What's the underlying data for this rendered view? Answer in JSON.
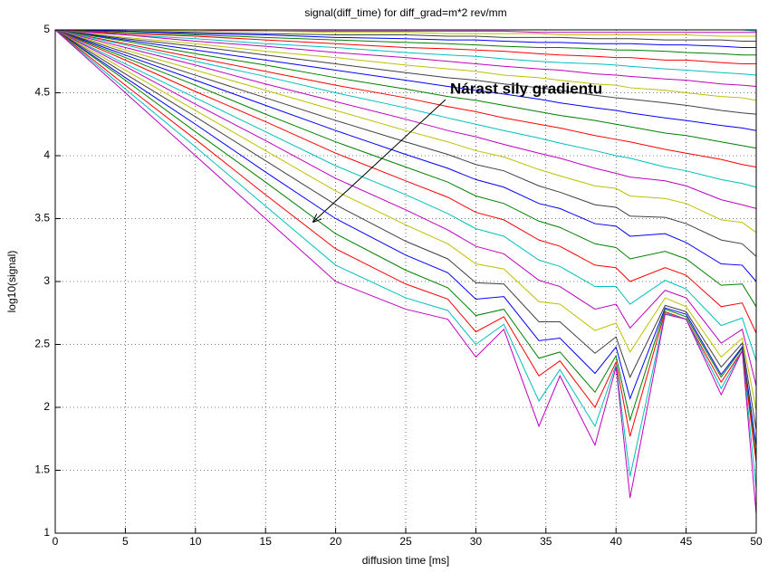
{
  "chart_data": {
    "type": "line",
    "title": "signal(diff_time) for diff_grad=m*2 rev/mm",
    "x_label": "diffusion time [ms]",
    "y_label": "log10(signal)",
    "annotation": "Nárast sily gradientu",
    "xlim": [
      0,
      50
    ],
    "xticks": [
      0,
      5,
      10,
      15,
      20,
      25,
      30,
      35,
      40,
      45,
      50
    ],
    "ylim": [
      1,
      5
    ],
    "yticks": [
      1,
      1.5,
      2,
      2.5,
      3,
      3.5,
      4,
      4.5,
      5
    ],
    "grid": true,
    "x": [
      0,
      5,
      10,
      15,
      20,
      25,
      28,
      30,
      32,
      34.5,
      36,
      38.5,
      40,
      41,
      43.5,
      45,
      47.5,
      49,
      50
    ],
    "series": [
      {
        "color": "#00bfbf",
        "values": [
          5,
          5,
          5,
          5,
          5,
          5,
          5,
          5,
          5,
          5,
          5,
          5,
          5,
          5,
          5,
          5,
          5,
          5,
          4.99
        ]
      },
      {
        "color": "#bf00bf",
        "values": [
          5,
          5,
          5,
          4.99,
          4.99,
          4.99,
          4.99,
          4.99,
          4.99,
          4.98,
          4.98,
          4.98,
          4.98,
          4.98,
          4.98,
          4.98,
          4.98,
          4.98,
          4.98
        ]
      },
      {
        "color": "#bfbf00",
        "values": [
          5,
          5,
          4.99,
          4.99,
          4.98,
          4.98,
          4.97,
          4.97,
          4.97,
          4.97,
          4.96,
          4.96,
          4.96,
          4.96,
          4.96,
          4.96,
          4.95,
          4.95,
          4.95
        ]
      },
      {
        "color": "#404040",
        "values": [
          5,
          4.99,
          4.98,
          4.97,
          4.96,
          4.96,
          4.95,
          4.95,
          4.94,
          4.94,
          4.94,
          4.93,
          4.93,
          4.93,
          4.92,
          4.92,
          4.92,
          4.91,
          4.91
        ]
      },
      {
        "color": "#0000ff",
        "values": [
          5,
          4.99,
          4.97,
          4.96,
          4.94,
          4.93,
          4.92,
          4.92,
          4.91,
          4.9,
          4.9,
          4.89,
          4.89,
          4.89,
          4.88,
          4.88,
          4.87,
          4.86,
          4.86
        ]
      },
      {
        "color": "#008000",
        "values": [
          5,
          4.98,
          4.96,
          4.94,
          4.92,
          4.9,
          4.89,
          4.88,
          4.87,
          4.86,
          4.86,
          4.85,
          4.84,
          4.84,
          4.83,
          4.82,
          4.81,
          4.8,
          4.8
        ]
      },
      {
        "color": "#ff0000",
        "values": [
          5,
          4.97,
          4.95,
          4.92,
          4.89,
          4.86,
          4.85,
          4.84,
          4.83,
          4.81,
          4.8,
          4.79,
          4.78,
          4.78,
          4.76,
          4.76,
          4.74,
          4.73,
          4.73
        ]
      },
      {
        "color": "#00bfbf",
        "values": [
          5,
          4.96,
          4.93,
          4.89,
          4.86,
          4.82,
          4.8,
          4.79,
          4.77,
          4.75,
          4.74,
          4.73,
          4.72,
          4.71,
          4.69,
          4.68,
          4.66,
          4.65,
          4.64
        ]
      },
      {
        "color": "#bf00bf",
        "values": [
          5,
          4.96,
          4.91,
          4.87,
          4.82,
          4.78,
          4.75,
          4.73,
          4.71,
          4.69,
          4.68,
          4.65,
          4.64,
          4.63,
          4.61,
          4.6,
          4.57,
          4.56,
          4.55
        ]
      },
      {
        "color": "#bfbf00",
        "values": [
          5,
          4.94,
          4.89,
          4.83,
          4.78,
          4.72,
          4.69,
          4.67,
          4.64,
          4.62,
          4.6,
          4.57,
          4.56,
          4.54,
          4.52,
          4.5,
          4.47,
          4.46,
          4.44
        ]
      },
      {
        "color": "#404040",
        "values": [
          5,
          4.93,
          4.87,
          4.8,
          4.73,
          4.66,
          4.62,
          4.6,
          4.57,
          4.54,
          4.52,
          4.48,
          4.46,
          4.45,
          4.42,
          4.4,
          4.36,
          4.34,
          4.33
        ]
      },
      {
        "color": "#0000ff",
        "values": [
          5,
          4.92,
          4.84,
          4.76,
          4.68,
          4.6,
          4.55,
          4.52,
          4.49,
          4.45,
          4.42,
          4.38,
          4.36,
          4.34,
          4.3,
          4.28,
          4.24,
          4.22,
          4.2
        ]
      },
      {
        "color": "#008000",
        "values": [
          5,
          4.91,
          4.81,
          4.72,
          4.62,
          4.53,
          4.47,
          4.44,
          4.4,
          4.35,
          4.32,
          4.28,
          4.25,
          4.23,
          4.18,
          4.16,
          4.11,
          4.08,
          4.06
        ]
      },
      {
        "color": "#ff0000",
        "values": [
          5,
          4.89,
          4.78,
          4.67,
          4.56,
          4.46,
          4.39,
          4.35,
          4.3,
          4.25,
          4.22,
          4.16,
          4.13,
          4.11,
          4.05,
          4.02,
          3.97,
          3.93,
          3.91
        ]
      },
      {
        "color": "#00bfbf",
        "values": [
          5,
          4.88,
          4.75,
          4.63,
          4.5,
          4.38,
          4.3,
          4.25,
          4.2,
          4.14,
          4.1,
          4.04,
          4,
          3.98,
          3.91,
          3.88,
          3.81,
          3.78,
          3.75
        ]
      },
      {
        "color": "#bf00bf",
        "values": [
          5,
          4.86,
          4.72,
          4.57,
          4.43,
          4.29,
          4.2,
          4.15,
          4.09,
          4.02,
          3.98,
          3.9,
          3.86,
          3.83,
          3.8,
          3.76,
          3.65,
          3.61,
          3.58
        ]
      },
      {
        "color": "#bfbf00",
        "values": [
          5,
          4.84,
          4.68,
          4.52,
          4.36,
          4.2,
          4.11,
          4.04,
          3.99,
          3.89,
          3.84,
          3.76,
          3.74,
          3.68,
          3.66,
          3.62,
          3.49,
          3.47,
          3.39
        ]
      },
      {
        "color": "#404040",
        "values": [
          5,
          4.82,
          4.64,
          4.46,
          4.28,
          4.11,
          4.01,
          3.93,
          3.88,
          3.76,
          3.71,
          3.61,
          3.59,
          3.52,
          3.51,
          3.46,
          3.33,
          3.3,
          3.2
        ]
      },
      {
        "color": "#0000ff",
        "values": [
          5,
          4.8,
          4.6,
          4.4,
          4.2,
          4.01,
          3.9,
          3.81,
          3.75,
          3.62,
          3.58,
          3.46,
          3.44,
          3.36,
          3.38,
          3.31,
          3.14,
          3.13,
          3
        ]
      },
      {
        "color": "#008000",
        "values": [
          5,
          4.78,
          4.56,
          4.33,
          4.11,
          3.91,
          3.79,
          3.68,
          3.62,
          3.48,
          3.43,
          3.3,
          3.27,
          3.18,
          3.24,
          3.18,
          2.97,
          2.98,
          2.8
        ]
      },
      {
        "color": "#ff0000",
        "values": [
          5,
          4.76,
          4.51,
          4.27,
          4.02,
          3.8,
          3.67,
          3.55,
          3.49,
          3.33,
          3.28,
          3.13,
          3.11,
          3,
          3.11,
          3.05,
          2.8,
          2.83,
          2.59
        ]
      },
      {
        "color": "#00bfbf",
        "values": [
          5,
          4.73,
          4.46,
          4.19,
          3.92,
          3.69,
          3.54,
          3.42,
          3.36,
          3.17,
          3.12,
          2.96,
          2.96,
          2.82,
          3.01,
          2.94,
          2.65,
          2.71,
          2.37
        ]
      },
      {
        "color": "#bf00bf",
        "values": [
          5,
          4.71,
          4.41,
          4.12,
          3.82,
          3.57,
          3.41,
          3.28,
          3.22,
          3.01,
          2.96,
          2.78,
          2.82,
          2.63,
          2.93,
          2.87,
          2.51,
          2.62,
          2.17
        ]
      },
      {
        "color": "#bfbf00",
        "values": [
          5,
          4.68,
          4.36,
          4.04,
          3.72,
          3.45,
          3.3,
          3.14,
          3.1,
          2.84,
          2.82,
          2.61,
          2.67,
          2.44,
          2.87,
          2.8,
          2.4,
          2.55,
          1.98
        ]
      },
      {
        "color": "#404040",
        "values": [
          5,
          4.65,
          4.31,
          3.96,
          3.61,
          3.32,
          3.18,
          2.99,
          2.98,
          2.68,
          2.68,
          2.43,
          2.56,
          2.24,
          2.81,
          2.76,
          2.32,
          2.51,
          1.82
        ]
      },
      {
        "color": "#0000ff",
        "values": [
          5,
          4.62,
          4.25,
          3.87,
          3.5,
          3.21,
          3.07,
          2.86,
          2.88,
          2.53,
          2.55,
          2.27,
          2.48,
          2.07,
          2.79,
          2.74,
          2.26,
          2.48,
          1.69
        ]
      },
      {
        "color": "#008000",
        "values": [
          5,
          4.6,
          4.19,
          3.79,
          3.38,
          3.09,
          2.95,
          2.73,
          2.78,
          2.39,
          2.44,
          2.12,
          2.41,
          1.9,
          2.78,
          2.72,
          2.24,
          2.47,
          1.61
        ]
      },
      {
        "color": "#ff0000",
        "values": [
          5,
          4.56,
          4.13,
          3.69,
          3.26,
          2.98,
          2.86,
          2.6,
          2.72,
          2.25,
          2.37,
          2,
          2.36,
          1.77,
          2.76,
          2.7,
          2.2,
          2.45,
          1.56
        ]
      },
      {
        "color": "#00bfbf",
        "values": [
          5,
          4.53,
          4.07,
          3.6,
          3.13,
          2.87,
          2.77,
          2.5,
          2.66,
          2.05,
          2.3,
          1.85,
          2.34,
          1.45,
          2.75,
          2.7,
          2.15,
          2.45,
          1.35
        ]
      },
      {
        "color": "#bf00bf",
        "values": [
          5,
          4.5,
          4,
          3.5,
          3,
          2.78,
          2.7,
          2.4,
          2.62,
          1.85,
          2.25,
          1.7,
          2.32,
          1.28,
          2.74,
          2.7,
          2.1,
          2.45,
          1.15
        ]
      }
    ]
  }
}
